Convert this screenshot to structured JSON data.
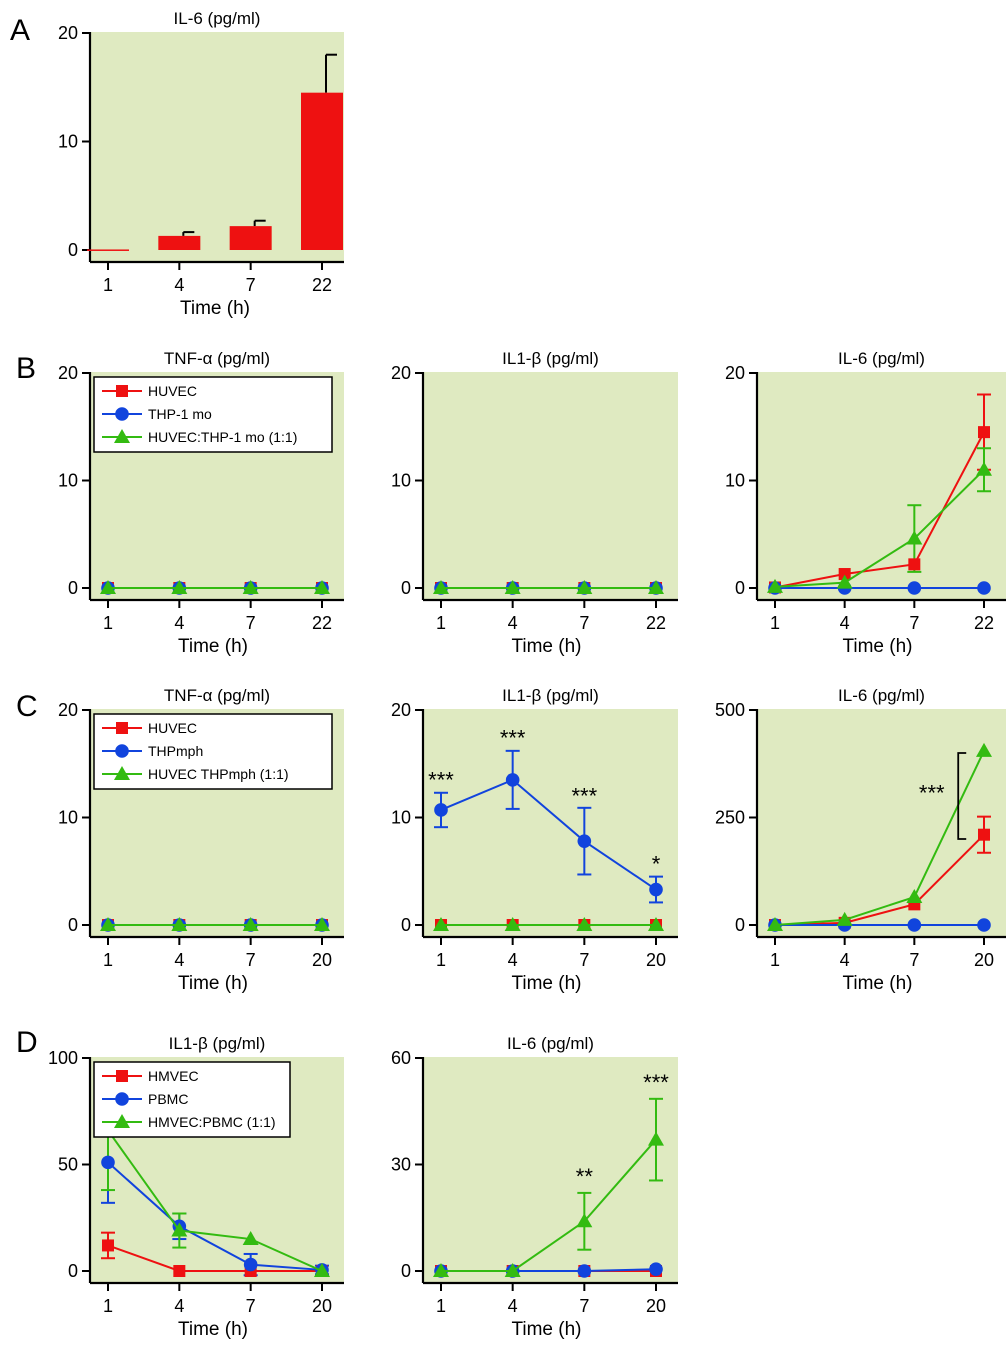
{
  "panel_labels": [
    "A",
    "B",
    "C",
    "D"
  ],
  "chart_data": [
    {
      "id": "A",
      "type": "bar",
      "title": "IL-6 (pg/ml)",
      "xlabel": "Time (h)",
      "ylabel": "",
      "categories": [
        "1",
        "4",
        "7",
        "22"
      ],
      "ylim": [
        0,
        20
      ],
      "yticks": [
        0,
        10,
        20
      ],
      "series": [
        {
          "name": "",
          "color": "#ee1111",
          "values": [
            0.05,
            1.3,
            2.2,
            14.5
          ],
          "errors": [
            0,
            0.35,
            0.5,
            3.5
          ]
        }
      ],
      "legend": [],
      "annotations": []
    },
    {
      "id": "B1",
      "type": "line",
      "title": "TNF-α (pg/ml)",
      "xlabel": "Time (h)",
      "ylabel": "",
      "categories": [
        "1",
        "4",
        "7",
        "22"
      ],
      "ylim": [
        0,
        20
      ],
      "yticks": [
        0,
        10,
        20
      ],
      "series": [
        {
          "name": "HUVEC",
          "color": "#ee1111",
          "marker": "square",
          "values": [
            0,
            0,
            0,
            0
          ],
          "errors": [
            0,
            0,
            0,
            0
          ]
        },
        {
          "name": "THP-1 mo",
          "color": "#1144dd",
          "marker": "circle",
          "values": [
            0,
            0,
            0,
            0
          ],
          "errors": [
            0,
            0,
            0,
            0
          ]
        },
        {
          "name": "HUVEC:THP-1 mo (1:1)",
          "color": "#33bb11",
          "marker": "triangle",
          "values": [
            0,
            0,
            0,
            0
          ],
          "errors": [
            0,
            0,
            0,
            0
          ]
        }
      ],
      "legend": [
        "HUVEC",
        "THP-1 mo",
        "HUVEC:THP-1 mo (1:1)"
      ],
      "annotations": []
    },
    {
      "id": "B2",
      "type": "line",
      "title": "IL1-β (pg/ml)",
      "xlabel": "Time (h)",
      "ylabel": "",
      "categories": [
        "1",
        "4",
        "7",
        "22"
      ],
      "ylim": [
        0,
        20
      ],
      "yticks": [
        0,
        10,
        20
      ],
      "series": [
        {
          "name": "HUVEC",
          "color": "#ee1111",
          "marker": "square",
          "values": [
            0,
            0,
            0,
            0
          ],
          "errors": [
            0,
            0,
            0,
            0
          ]
        },
        {
          "name": "THP-1 mo",
          "color": "#1144dd",
          "marker": "circle",
          "values": [
            0,
            0,
            0,
            0
          ],
          "errors": [
            0,
            0,
            0,
            0
          ]
        },
        {
          "name": "HUVEC:THP-1 mo (1:1)",
          "color": "#33bb11",
          "marker": "triangle",
          "values": [
            0,
            0,
            0,
            0
          ],
          "errors": [
            0,
            0,
            0,
            0
          ]
        }
      ],
      "legend": [],
      "annotations": []
    },
    {
      "id": "B3",
      "type": "line",
      "title": "IL-6 (pg/ml)",
      "xlabel": "Time (h)",
      "ylabel": "",
      "categories": [
        "1",
        "4",
        "7",
        "22"
      ],
      "ylim": [
        0,
        20
      ],
      "yticks": [
        0,
        10,
        20
      ],
      "series": [
        {
          "name": "HUVEC",
          "color": "#ee1111",
          "marker": "square",
          "values": [
            0.05,
            1.3,
            2.2,
            14.5
          ],
          "errors": [
            0,
            0,
            0,
            3.5
          ]
        },
        {
          "name": "THP-1 mo",
          "color": "#1144dd",
          "marker": "circle",
          "values": [
            0,
            0,
            0,
            0
          ],
          "errors": [
            0,
            0,
            0,
            0
          ]
        },
        {
          "name": "HUVEC:THP-1 mo (1:1)",
          "color": "#33bb11",
          "marker": "triangle",
          "values": [
            0.1,
            0.5,
            4.6,
            11
          ],
          "errors": [
            0,
            0,
            3.1,
            2
          ]
        }
      ],
      "legend": [],
      "annotations": []
    },
    {
      "id": "C1",
      "type": "line",
      "title": "TNF-α (pg/ml)",
      "xlabel": "Time (h)",
      "ylabel": "",
      "categories": [
        "1",
        "4",
        "7",
        "20"
      ],
      "ylim": [
        0,
        20
      ],
      "yticks": [
        0,
        10,
        20
      ],
      "series": [
        {
          "name": "HUVEC",
          "color": "#ee1111",
          "marker": "square",
          "values": [
            0,
            0,
            0,
            0
          ],
          "errors": [
            0,
            0,
            0,
            0
          ]
        },
        {
          "name": "THPmph",
          "color": "#1144dd",
          "marker": "circle",
          "values": [
            0,
            0,
            0,
            0
          ],
          "errors": [
            0,
            0,
            0,
            0
          ]
        },
        {
          "name": "HUVEC THPmph (1:1)",
          "color": "#33bb11",
          "marker": "triangle",
          "values": [
            0,
            0,
            0,
            0
          ],
          "errors": [
            0,
            0,
            0,
            0
          ]
        }
      ],
      "legend": [
        "HUVEC",
        "THPmph",
        "HUVEC THPmph (1:1)"
      ],
      "annotations": []
    },
    {
      "id": "C2",
      "type": "line",
      "title": "IL1-β (pg/ml)",
      "xlabel": "Time (h)",
      "ylabel": "",
      "categories": [
        "1",
        "4",
        "7",
        "20"
      ],
      "ylim": [
        0,
        20
      ],
      "yticks": [
        0,
        10,
        20
      ],
      "series": [
        {
          "name": "HUVEC",
          "color": "#ee1111",
          "marker": "square",
          "values": [
            0,
            0,
            0,
            0
          ],
          "errors": [
            0,
            0,
            0,
            0
          ]
        },
        {
          "name": "THPmph",
          "color": "#1144dd",
          "marker": "circle",
          "values": [
            10.7,
            13.5,
            7.8,
            3.3
          ],
          "errors": [
            1.6,
            2.7,
            3.1,
            1.2
          ]
        },
        {
          "name": "HUVEC THPmph (1:1)",
          "color": "#33bb11",
          "marker": "triangle",
          "values": [
            0,
            0,
            0,
            0
          ],
          "errors": [
            0,
            0,
            0,
            0
          ]
        }
      ],
      "legend": [],
      "annotations": [
        {
          "text": "***",
          "x": 0,
          "y": 12.8
        },
        {
          "text": "***",
          "x": 1,
          "y": 16.7
        },
        {
          "text": "***",
          "x": 2,
          "y": 11.3
        },
        {
          "text": "*",
          "x": 3,
          "y": 5.0
        }
      ]
    },
    {
      "id": "C3",
      "type": "line",
      "title": "IL-6 (pg/ml)",
      "xlabel": "Time (h)",
      "ylabel": "",
      "categories": [
        "1",
        "4",
        "7",
        "20"
      ],
      "ylim": [
        0,
        500
      ],
      "yticks": [
        0,
        250,
        500
      ],
      "series": [
        {
          "name": "HUVEC",
          "color": "#ee1111",
          "marker": "square",
          "values": [
            0,
            5,
            48,
            210
          ],
          "errors": [
            0,
            0,
            0,
            42
          ]
        },
        {
          "name": "THPmph",
          "color": "#1144dd",
          "marker": "circle",
          "values": [
            0,
            0,
            0,
            0
          ],
          "errors": [
            0,
            0,
            0,
            0
          ]
        },
        {
          "name": "HUVEC THPmph (1:1)",
          "color": "#33bb11",
          "marker": "triangle",
          "values": [
            0,
            12,
            65,
            405
          ],
          "errors": [
            0,
            0,
            0,
            0
          ]
        }
      ],
      "legend": [],
      "annotations": [
        {
          "text": "***",
          "x": 2.25,
          "y": 290
        }
      ],
      "bracket": {
        "x": 2.63,
        "y1": 200,
        "y2": 400
      }
    },
    {
      "id": "D1",
      "type": "line",
      "title": "IL1-β (pg/ml)",
      "xlabel": "Time (h)",
      "ylabel": "",
      "categories": [
        "1",
        "4",
        "7",
        "20"
      ],
      "ylim": [
        0,
        100
      ],
      "yticks": [
        0,
        50,
        100
      ],
      "series": [
        {
          "name": "HMVEC",
          "color": "#ee1111",
          "marker": "square",
          "values": [
            12,
            0,
            0,
            0
          ],
          "errors": [
            6,
            0,
            0,
            0
          ]
        },
        {
          "name": "PBMC",
          "color": "#1144dd",
          "marker": "circle",
          "values": [
            51,
            21,
            3,
            0.5
          ],
          "errors": [
            19,
            6,
            5,
            2
          ]
        },
        {
          "name": "HMVEC:PBMC (1:1)",
          "color": "#33bb11",
          "marker": "triangle",
          "values": [
            66,
            19,
            15,
            0
          ],
          "errors": [
            28,
            8,
            0,
            0
          ]
        }
      ],
      "legend": [
        "HMVEC",
        "PBMC",
        "HMVEC:PBMC (1:1)"
      ],
      "annotations": []
    },
    {
      "id": "D2",
      "type": "line",
      "title": "IL-6 (pg/ml)",
      "xlabel": "Time (h)",
      "ylabel": "",
      "categories": [
        "1",
        "4",
        "7",
        "20"
      ],
      "ylim": [
        0,
        60
      ],
      "yticks": [
        0,
        30,
        60
      ],
      "series": [
        {
          "name": "HMVEC",
          "color": "#ee1111",
          "marker": "square",
          "values": [
            0,
            0,
            0,
            0
          ],
          "errors": [
            0,
            0,
            0,
            0
          ]
        },
        {
          "name": "PBMC",
          "color": "#1144dd",
          "marker": "circle",
          "values": [
            0,
            0,
            0,
            0.5
          ],
          "errors": [
            0,
            0,
            0,
            0
          ]
        },
        {
          "name": "HMVEC:PBMC (1:1)",
          "color": "#33bb11",
          "marker": "triangle",
          "values": [
            0,
            0,
            14,
            37
          ],
          "errors": [
            0,
            0,
            8,
            11.5
          ]
        }
      ],
      "legend": [],
      "annotations": [
        {
          "text": "**",
          "x": 2,
          "y": 24.5
        },
        {
          "text": "***",
          "x": 3,
          "y": 51
        }
      ]
    }
  ]
}
